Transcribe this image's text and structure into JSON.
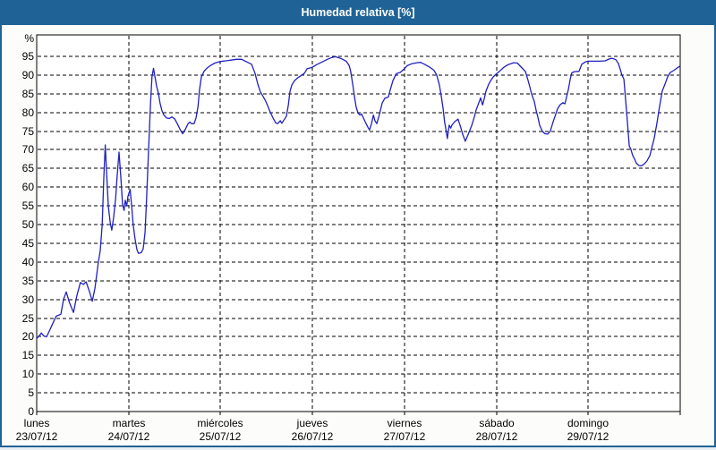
{
  "header": {
    "title": "Humedad relativa [%]"
  },
  "colors": {
    "titlebar_bg": "#1f6396",
    "titlebar_text": "#ffffff",
    "window_bg": "#fcfdfa",
    "plot_bg": "#ffffff",
    "frame": "#000000",
    "grid": "#000000",
    "axis_text": "#000000",
    "series_line": "#2020c0"
  },
  "chart_data": {
    "type": "line",
    "title": "Humedad relativa [%]",
    "ylabel": "%",
    "ylim": [
      0,
      100.74
    ],
    "yticks": [
      0,
      5,
      10,
      15,
      20,
      25,
      30,
      35,
      40,
      45,
      50,
      55,
      60,
      65,
      70,
      75,
      80,
      85,
      90,
      95
    ],
    "x_unit": "hours since lunes 23/07/12 00:00",
    "xlim": [
      0,
      168
    ],
    "days_shown": 7,
    "grid": "dashed",
    "legend_position": "none",
    "x_axis_days": [
      {
        "name": "lunes",
        "date": "23/07/12"
      },
      {
        "name": "martes",
        "date": "24/07/12"
      },
      {
        "name": "miércoles",
        "date": "25/07/12"
      },
      {
        "name": "jueves",
        "date": "26/07/12"
      },
      {
        "name": "viernes",
        "date": "27/07/12"
      },
      {
        "name": "sábado",
        "date": "28/07/12"
      },
      {
        "name": "domingo",
        "date": "29/07/12"
      }
    ],
    "series": [
      {
        "name": "Humedad relativa",
        "color": "#2020c0",
        "points": [
          [
            0,
            19.5
          ],
          [
            0.7,
            20.3
          ],
          [
            1.2,
            21
          ],
          [
            1.9,
            20.2
          ],
          [
            2.6,
            20
          ],
          [
            3.5,
            22
          ],
          [
            4.4,
            24
          ],
          [
            5.1,
            25.5
          ],
          [
            6.3,
            26
          ],
          [
            7,
            30
          ],
          [
            7.7,
            32
          ],
          [
            8.6,
            29
          ],
          [
            9.6,
            26.5
          ],
          [
            10.5,
            31
          ],
          [
            11.4,
            34.5
          ],
          [
            12.2,
            34
          ],
          [
            12.9,
            34.7
          ],
          [
            13.8,
            32
          ],
          [
            14.5,
            29.5
          ],
          [
            15.2,
            33
          ],
          [
            16.1,
            40
          ],
          [
            16.6,
            43
          ],
          [
            17.1,
            50
          ],
          [
            17.5,
            62
          ],
          [
            17.9,
            71.3
          ],
          [
            18.2,
            65
          ],
          [
            18.7,
            55
          ],
          [
            19.2,
            50.5
          ],
          [
            19.6,
            48.5
          ],
          [
            20.1,
            52
          ],
          [
            20.6,
            57
          ],
          [
            21,
            63
          ],
          [
            21.5,
            69.4
          ],
          [
            22,
            62
          ],
          [
            22.4,
            55.5
          ],
          [
            22.8,
            53.8
          ],
          [
            23.1,
            56.5
          ],
          [
            23.5,
            55
          ],
          [
            23.8,
            57.5
          ],
          [
            24.4,
            59.4
          ],
          [
            24.8,
            55
          ],
          [
            25.2,
            50
          ],
          [
            25.7,
            46
          ],
          [
            26.2,
            43.2
          ],
          [
            26.6,
            42.3
          ],
          [
            27.3,
            42.5
          ],
          [
            27.8,
            43.5
          ],
          [
            28.3,
            48
          ],
          [
            28.7,
            57
          ],
          [
            29.2,
            70
          ],
          [
            29.7,
            82
          ],
          [
            30.1,
            89.5
          ],
          [
            30.5,
            91.8
          ],
          [
            30.8,
            90
          ],
          [
            31.3,
            87
          ],
          [
            31.8,
            85
          ],
          [
            32.2,
            82.5
          ],
          [
            32.7,
            80.5
          ],
          [
            33.2,
            79.3
          ],
          [
            33.9,
            78.5
          ],
          [
            34.6,
            78.4
          ],
          [
            35.3,
            78.8
          ],
          [
            36,
            78.3
          ],
          [
            36.7,
            77
          ],
          [
            37.4,
            75.5
          ],
          [
            38.1,
            74.3
          ],
          [
            38.8,
            75.5
          ],
          [
            39.5,
            77
          ],
          [
            40,
            77.4
          ],
          [
            40.4,
            77
          ],
          [
            41.1,
            77
          ],
          [
            41.6,
            78.5
          ],
          [
            42.1,
            81.5
          ],
          [
            42.5,
            86
          ],
          [
            43,
            89.5
          ],
          [
            43.7,
            91
          ],
          [
            44.4,
            91.8
          ],
          [
            45.3,
            92.5
          ],
          [
            46.5,
            93.2
          ],
          [
            47.9,
            93.6
          ],
          [
            49.3,
            93.8
          ],
          [
            50.7,
            94
          ],
          [
            52.1,
            94.2
          ],
          [
            53.5,
            94.2
          ],
          [
            54.9,
            93.5
          ],
          [
            56.1,
            92.9
          ],
          [
            57,
            90.5
          ],
          [
            57.7,
            87.7
          ],
          [
            58.4,
            85.5
          ],
          [
            59.1,
            84.3
          ],
          [
            59.8,
            83
          ],
          [
            60.3,
            81.8
          ],
          [
            61,
            80
          ],
          [
            61.7,
            78.5
          ],
          [
            62.4,
            77.2
          ],
          [
            62.9,
            77
          ],
          [
            63.6,
            77.8
          ],
          [
            64,
            77.1
          ],
          [
            64.7,
            78.2
          ],
          [
            65.2,
            79
          ],
          [
            65.7,
            82
          ],
          [
            66.1,
            85.5
          ],
          [
            66.6,
            87.3
          ],
          [
            67.3,
            88.5
          ],
          [
            68.2,
            89.3
          ],
          [
            69.2,
            90
          ],
          [
            69.9,
            90.5
          ],
          [
            70.6,
            91.7
          ],
          [
            71.5,
            91.9
          ],
          [
            72,
            92.1
          ],
          [
            73.1,
            92.8
          ],
          [
            74.5,
            93.5
          ],
          [
            75.9,
            94.2
          ],
          [
            77.1,
            94.7
          ],
          [
            78,
            94.9
          ],
          [
            79,
            94.6
          ],
          [
            79.9,
            94.2
          ],
          [
            80.8,
            93.7
          ],
          [
            81.6,
            92.5
          ],
          [
            82,
            90.9
          ],
          [
            82.5,
            87.5
          ],
          [
            83,
            84
          ],
          [
            83.4,
            81.5
          ],
          [
            83.9,
            79.8
          ],
          [
            84.4,
            79.3
          ],
          [
            84.8,
            79.6
          ],
          [
            85.3,
            78.5
          ],
          [
            85.8,
            77.4
          ],
          [
            86.5,
            76
          ],
          [
            86.9,
            75.3
          ],
          [
            87.4,
            77
          ],
          [
            87.9,
            79.3
          ],
          [
            88.3,
            77.8
          ],
          [
            88.8,
            77
          ],
          [
            89.5,
            79.5
          ],
          [
            90.2,
            82.5
          ],
          [
            90.9,
            83.8
          ],
          [
            91.8,
            84.1
          ],
          [
            92.3,
            86
          ],
          [
            93,
            88.5
          ],
          [
            93.9,
            90.4
          ],
          [
            94.9,
            90.7
          ],
          [
            95.8,
            91.5
          ],
          [
            96.7,
            92.5
          ],
          [
            97.9,
            93
          ],
          [
            99.3,
            93.3
          ],
          [
            100.2,
            93.4
          ],
          [
            101.4,
            92.8
          ],
          [
            102.6,
            92.1
          ],
          [
            103.7,
            91.3
          ],
          [
            104.4,
            90.1
          ],
          [
            105.1,
            87.5
          ],
          [
            105.6,
            84.6
          ],
          [
            106.1,
            81
          ],
          [
            106.5,
            77.4
          ],
          [
            107,
            74.5
          ],
          [
            107.2,
            73
          ],
          [
            107.7,
            76.6
          ],
          [
            108.1,
            75.8
          ],
          [
            108.4,
            76.6
          ],
          [
            109.1,
            77.5
          ],
          [
            110,
            78.2
          ],
          [
            110.7,
            76
          ],
          [
            111.2,
            74.2
          ],
          [
            111.9,
            72.3
          ],
          [
            112.6,
            74
          ],
          [
            113.6,
            76.6
          ],
          [
            114.3,
            79
          ],
          [
            114.7,
            80.6
          ],
          [
            115.4,
            82.5
          ],
          [
            115.9,
            83.9
          ],
          [
            116.4,
            82
          ],
          [
            116.8,
            83.5
          ],
          [
            117.3,
            85.7
          ],
          [
            118,
            87.5
          ],
          [
            118.5,
            88.5
          ],
          [
            119.2,
            89.5
          ],
          [
            119.9,
            90.2
          ],
          [
            120.8,
            91
          ],
          [
            122,
            92.1
          ],
          [
            123.1,
            92.8
          ],
          [
            124.5,
            93.3
          ],
          [
            125.5,
            93.2
          ],
          [
            126.6,
            92
          ],
          [
            127.6,
            90.9
          ],
          [
            128.3,
            88.5
          ],
          [
            128.7,
            87
          ],
          [
            129.2,
            85
          ],
          [
            129.9,
            83
          ],
          [
            130.4,
            80.5
          ],
          [
            130.9,
            78.5
          ],
          [
            131.3,
            76.6
          ],
          [
            132,
            75
          ],
          [
            132.7,
            74.3
          ],
          [
            133.4,
            74.2
          ],
          [
            134.1,
            75
          ],
          [
            134.8,
            77.4
          ],
          [
            135.5,
            79.5
          ],
          [
            136,
            81
          ],
          [
            136.7,
            82.1
          ],
          [
            137.4,
            82.6
          ],
          [
            137.9,
            82.3
          ],
          [
            138.3,
            84
          ],
          [
            138.8,
            86.1
          ],
          [
            139.3,
            89
          ],
          [
            139.7,
            90.6
          ],
          [
            140.4,
            90.9
          ],
          [
            141.6,
            91
          ],
          [
            142.3,
            92.9
          ],
          [
            143.2,
            93.5
          ],
          [
            143.9,
            93.7
          ],
          [
            145.3,
            93.7
          ],
          [
            147,
            93.7
          ],
          [
            148.4,
            93.8
          ],
          [
            149.5,
            94.3
          ],
          [
            150.2,
            94.5
          ],
          [
            151.2,
            94.1
          ],
          [
            151.9,
            93
          ],
          [
            152.3,
            91.7
          ],
          [
            152.8,
            90
          ],
          [
            153.3,
            88.9
          ],
          [
            153.7,
            84
          ],
          [
            154,
            80.2
          ],
          [
            154.4,
            75
          ],
          [
            154.7,
            71
          ],
          [
            155.1,
            70.2
          ],
          [
            155.6,
            68.5
          ],
          [
            156.1,
            67.5
          ],
          [
            156.5,
            66.5
          ],
          [
            157.2,
            65.8
          ],
          [
            157.9,
            65.7
          ],
          [
            158.6,
            66.2
          ],
          [
            159.3,
            67
          ],
          [
            160.1,
            68.5
          ],
          [
            160.5,
            70.2
          ],
          [
            161.2,
            73
          ],
          [
            161.9,
            77
          ],
          [
            162.6,
            81.5
          ],
          [
            163.3,
            85.7
          ],
          [
            164,
            87.5
          ],
          [
            164.7,
            89.5
          ],
          [
            165.4,
            90.7
          ],
          [
            166.4,
            91.3
          ],
          [
            167.1,
            91.8
          ],
          [
            167.8,
            92.3
          ]
        ]
      }
    ]
  }
}
